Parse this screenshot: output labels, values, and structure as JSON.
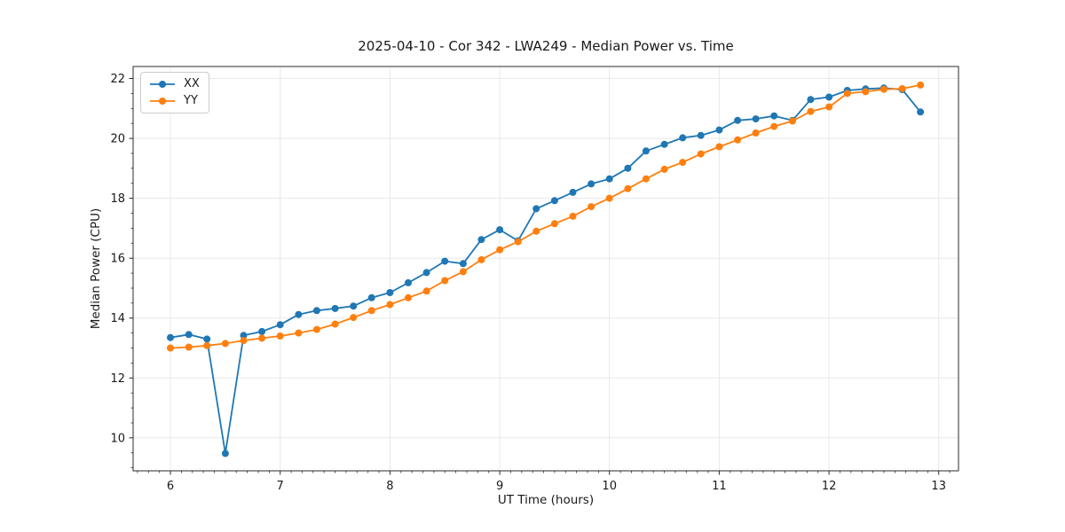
{
  "chart_data": {
    "type": "line",
    "title": "2025-04-10 - Cor 342 - LWA249 - Median Power vs. Time",
    "xlabel": "UT Time (hours)",
    "ylabel": "Median Power (CPU)",
    "xlim": [
      5.66,
      13.18
    ],
    "ylim": [
      8.9,
      22.4
    ],
    "x_ticks": [
      6,
      7,
      8,
      9,
      10,
      11,
      12,
      13
    ],
    "y_ticks": [
      10,
      12,
      14,
      16,
      18,
      20,
      22
    ],
    "x_minor_step": 0.1,
    "y_minor_step": 0.5,
    "grid": "major",
    "grid_color": "#e8e8e8",
    "spine_color": "#2b2b2b",
    "tick_label_color": "#1a1a1a",
    "legend_position": "upper-left",
    "marker": "circle",
    "x": [
      6.0,
      6.167,
      6.333,
      6.5,
      6.667,
      6.833,
      7.0,
      7.167,
      7.333,
      7.5,
      7.667,
      7.833,
      8.0,
      8.167,
      8.333,
      8.5,
      8.667,
      8.833,
      9.0,
      9.167,
      9.333,
      9.5,
      9.667,
      9.833,
      10.0,
      10.167,
      10.333,
      10.5,
      10.667,
      10.833,
      11.0,
      11.167,
      11.333,
      11.5,
      11.667,
      11.833,
      12.0,
      12.167,
      12.333,
      12.5,
      12.667,
      12.833
    ],
    "series": [
      {
        "name": "XX",
        "color": "#1f77b4",
        "values": [
          13.35,
          13.45,
          13.3,
          9.48,
          13.42,
          13.55,
          13.78,
          14.12,
          14.25,
          14.32,
          14.4,
          14.68,
          14.85,
          15.18,
          15.52,
          15.9,
          15.82,
          16.62,
          16.95,
          16.58,
          17.65,
          17.92,
          18.2,
          18.48,
          18.65,
          19.0,
          19.58,
          19.8,
          20.02,
          20.1,
          20.28,
          20.6,
          20.65,
          20.75,
          20.6,
          21.3,
          21.38,
          21.6,
          21.65,
          21.68,
          21.63,
          20.88
        ]
      },
      {
        "name": "YY",
        "color": "#ff7f0e",
        "values": [
          13.0,
          13.03,
          13.08,
          13.15,
          13.25,
          13.33,
          13.4,
          13.5,
          13.62,
          13.8,
          14.02,
          14.25,
          14.45,
          14.68,
          14.9,
          15.25,
          15.55,
          15.95,
          16.28,
          16.55,
          16.9,
          17.15,
          17.4,
          17.72,
          18.0,
          18.32,
          18.65,
          18.97,
          19.2,
          19.48,
          19.72,
          19.95,
          20.18,
          20.4,
          20.58,
          20.9,
          21.05,
          21.5,
          21.56,
          21.64,
          21.66,
          21.78
        ]
      }
    ]
  }
}
